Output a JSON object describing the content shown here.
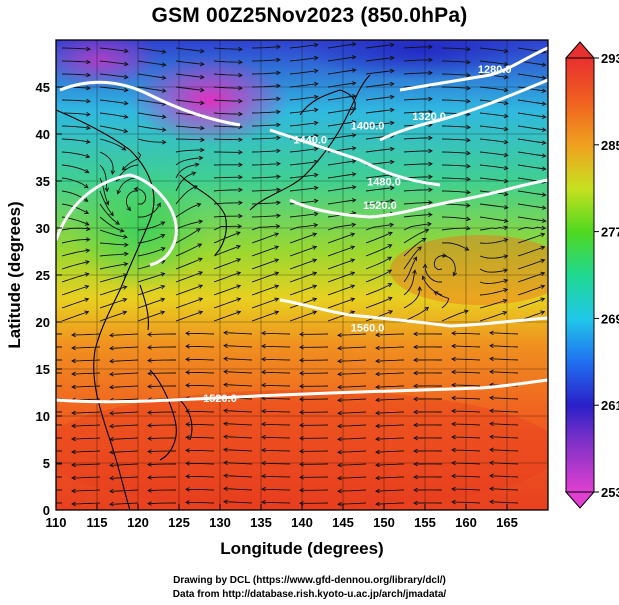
{
  "title": "GSM 00Z25Nov2023 (850.0hPa)",
  "credits": {
    "line1": "Drawing by DCL (https://www.gfd-dennou.org/library/dcl/)",
    "line2": "Data from http://database.rish.kyoto-u.ac.jp/arch/jmadata/"
  },
  "axes": {
    "xlabel": "Longitude (degrees)",
    "ylabel": "Latitude  (degrees)",
    "xlim": [
      110,
      170
    ],
    "ylim": [
      0,
      50
    ],
    "xticks": [
      "110",
      "115",
      "120",
      "125",
      "130",
      "135",
      "140",
      "145",
      "150",
      "155",
      "160",
      "165"
    ],
    "yticks": [
      "0",
      "5",
      "10",
      "15",
      "20",
      "25",
      "30",
      "35",
      "40",
      "45"
    ]
  },
  "colorbar": {
    "labels": [
      "293",
      "285",
      "277",
      "269",
      "261",
      "253"
    ],
    "min": 253,
    "max": 293
  },
  "contour_labels": [
    {
      "text": "1320.0",
      "lon": 155.5,
      "lat": 41.5
    },
    {
      "text": "1400.0",
      "lon": 148.0,
      "lat": 40.5
    },
    {
      "text": "1440.0",
      "lon": 141.0,
      "lat": 39.0
    },
    {
      "text": "1480.0",
      "lon": 150.0,
      "lat": 34.5
    },
    {
      "text": "1520.0",
      "lon": 149.5,
      "lat": 32.0
    },
    {
      "text": "1560.0",
      "lon": 148.0,
      "lat": 19.0
    },
    {
      "text": "1520.0",
      "lon": 130.0,
      "lat": 11.5
    },
    {
      "text": "1280.0",
      "lon": 163.5,
      "lat": 46.5
    }
  ]
}
